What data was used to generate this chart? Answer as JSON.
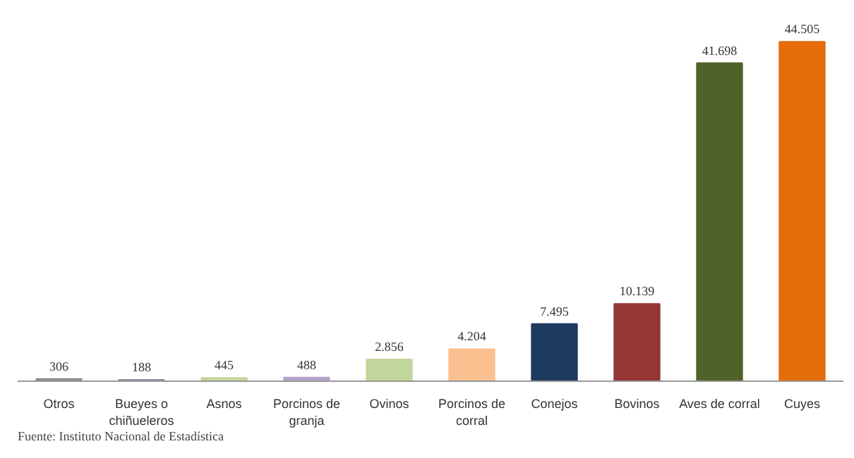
{
  "chart_data": {
    "type": "bar",
    "categories": [
      "Otros",
      "Bueyes o\nchiñueleros",
      "Asnos",
      "Porcinos de\ngranja",
      "Ovinos",
      "Porcinos de\ncorral",
      "Conejos",
      "Bovinos",
      "Aves de corral",
      "Cuyes"
    ],
    "values": [
      306,
      188,
      445,
      488,
      2856,
      4204,
      7495,
      10139,
      41698,
      44505
    ],
    "colors": [
      "#8c8c8c",
      "#8f8aa0",
      "#c3d69b",
      "#b3a2c7",
      "#c3d69b",
      "#fac090",
      "#1f3a5f",
      "#953735",
      "#4f6228",
      "#e46c0a"
    ],
    "value_labels": [
      "306",
      "188",
      "445",
      "488",
      "2.856",
      "4.204",
      "7.495",
      "10.139",
      "41.698",
      "44.505"
    ],
    "tick_labels": "x",
    "grid": false,
    "annotations": [
      "Fuente: Instituto Nacional de Estadística"
    ]
  }
}
